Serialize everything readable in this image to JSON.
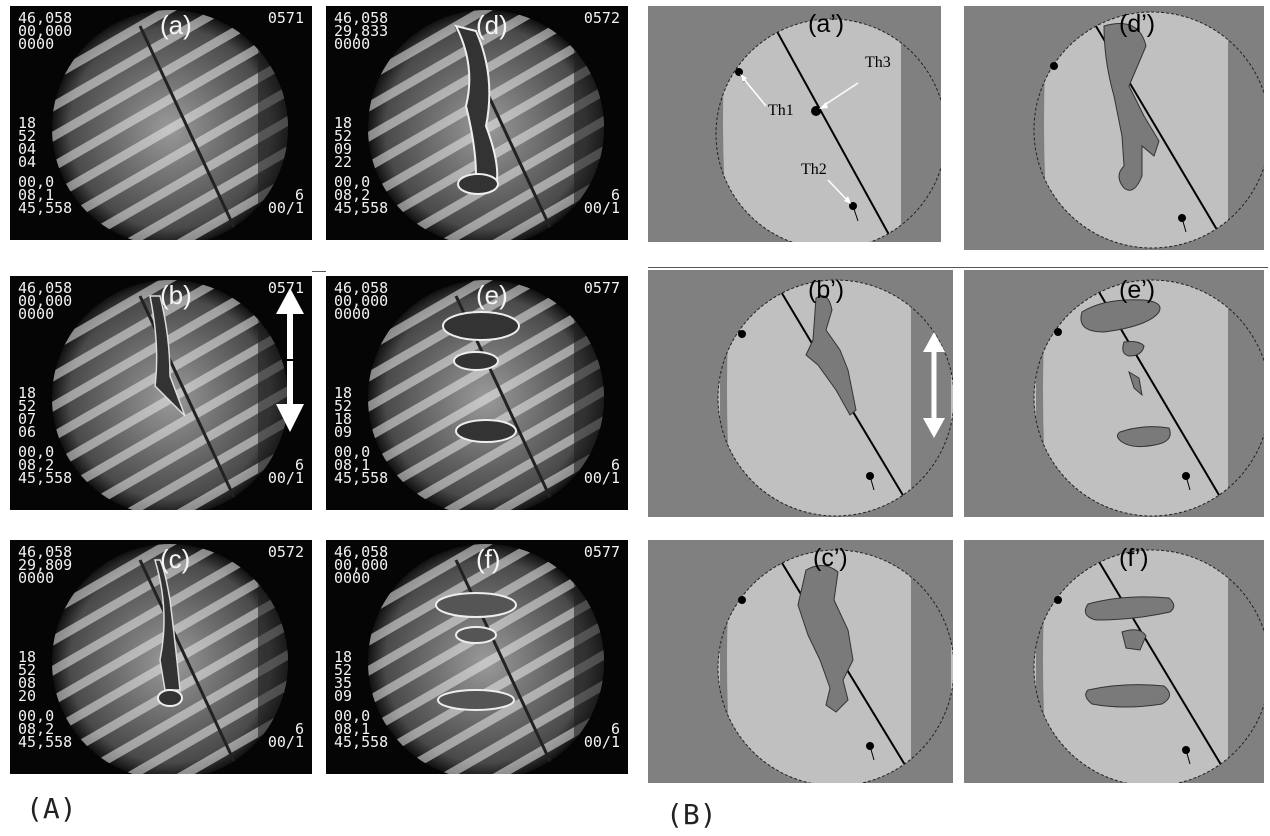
{
  "photos": [
    {
      "label": "(a)",
      "tl": "46,058\n00,000\n0000",
      "tr": "0571",
      "ml": "18\n52\n04\n04",
      "bl": "00,0\n08,1\n45,558",
      "br": "6\n00/1"
    },
    {
      "label": "(d)",
      "tl": "46,058\n29,833\n0000",
      "tr": "0572",
      "ml": "18\n52\n09\n22",
      "bl": "00,0\n08,2\n45,558",
      "br": "6\n00/1"
    },
    {
      "label": "(b)",
      "tl": "46,058\n00,000\n0000",
      "tr": "0571",
      "ml": "18\n52\n07\n06",
      "bl": "00,0\n08,2\n45,558",
      "br": "6\n00/1"
    },
    {
      "label": "(e)",
      "tl": "46,058\n00,000\n0000",
      "tr": "0577",
      "ml": "18\n52\n18\n09",
      "bl": "00,0\n08,1\n45,558",
      "br": "6\n00/1"
    },
    {
      "label": "(c)",
      "tl": "46,058\n29,809\n0000",
      "tr": "0572",
      "ml": "18\n52\n08\n20",
      "bl": "00,0\n08,2\n45,558",
      "br": "6\n00/1"
    },
    {
      "label": "(f)",
      "tl": "46,058\n00,000\n0000",
      "tr": "0577",
      "ml": "18\n52\n35\n09",
      "bl": "00,0\n08,1\n45,558",
      "br": "6\n00/1"
    }
  ],
  "sketches": [
    {
      "label": "(a’)",
      "th1": "Th1",
      "th2": "Th2",
      "th3": "Th3"
    },
    {
      "label": "(d’)"
    },
    {
      "label": "(b’)"
    },
    {
      "label": "(e’)"
    },
    {
      "label": "(c’)"
    },
    {
      "label": "(f’)"
    }
  ],
  "groups": {
    "A": "(A)",
    "B": "(B)"
  },
  "colors": {
    "sketch_bg": "#808080",
    "disk": "#c0c0c0",
    "bubble": "#7a7a7a"
  }
}
